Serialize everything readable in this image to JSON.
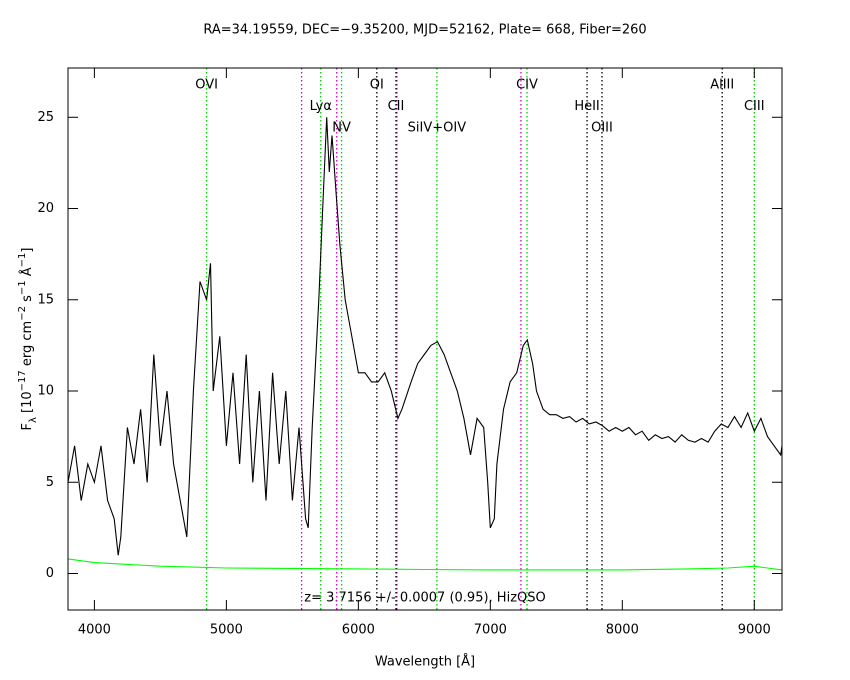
{
  "chart_data": {
    "type": "line",
    "title": "RA=34.19559, DEC=−9.35200, MJD=52162, Plate= 668, Fiber=260",
    "xlabel": "Wavelength [Å]",
    "ylabel_parts": [
      {
        "text": "F",
        "style": "base"
      },
      {
        "text": "λ",
        "style": "sub"
      },
      {
        "text": " [10",
        "style": "base"
      },
      {
        "text": "−17",
        "style": "sup"
      },
      {
        "text": " erg cm",
        "style": "base"
      },
      {
        "text": "−2",
        "style": "sup"
      },
      {
        "text": " s",
        "style": "base"
      },
      {
        "text": "−1",
        "style": "sup"
      },
      {
        "text": " Å",
        "style": "base"
      },
      {
        "text": "−1",
        "style": "sup"
      },
      {
        "text": "]",
        "style": "base"
      }
    ],
    "annotation": "z= 3.7156 +/- 0.0007 (0.95), HizQSO",
    "xlim": [
      3800,
      9210
    ],
    "ylim": [
      -2,
      27.7
    ],
    "xticks": [
      4000,
      5000,
      6000,
      7000,
      8000,
      9000
    ],
    "yticks": [
      0,
      5,
      10,
      15,
      20,
      25
    ],
    "series": [
      {
        "name": "flux",
        "color": "#000000",
        "x": [
          3800,
          3850,
          3900,
          3950,
          4000,
          4050,
          4100,
          4150,
          4180,
          4200,
          4250,
          4300,
          4350,
          4400,
          4450,
          4500,
          4550,
          4600,
          4650,
          4700,
          4750,
          4800,
          4850,
          4880,
          4900,
          4950,
          5000,
          5050,
          5100,
          5150,
          5200,
          5250,
          5300,
          5350,
          5400,
          5450,
          5500,
          5550,
          5600,
          5620,
          5650,
          5700,
          5730,
          5760,
          5780,
          5800,
          5830,
          5860,
          5900,
          5950,
          6000,
          6050,
          6100,
          6150,
          6200,
          6250,
          6300,
          6330,
          6400,
          6450,
          6500,
          6550,
          6600,
          6650,
          6700,
          6750,
          6800,
          6850,
          6900,
          6950,
          6980,
          7000,
          7030,
          7050,
          7100,
          7150,
          7200,
          7250,
          7280,
          7320,
          7350,
          7400,
          7450,
          7500,
          7550,
          7600,
          7650,
          7700,
          7750,
          7800,
          7850,
          7900,
          7950,
          8000,
          8050,
          8100,
          8150,
          8200,
          8250,
          8300,
          8350,
          8400,
          8450,
          8500,
          8550,
          8600,
          8650,
          8700,
          8750,
          8800,
          8850,
          8900,
          8950,
          9000,
          9050,
          9100,
          9150,
          9200,
          9210
        ],
        "values": [
          5,
          7,
          4,
          6,
          5,
          7,
          4,
          3,
          1,
          2,
          8,
          6,
          9,
          5,
          12,
          7,
          10,
          6,
          4,
          2,
          10,
          16,
          15,
          17,
          10,
          13,
          7,
          11,
          6,
          12,
          5,
          10,
          4,
          11,
          6,
          10,
          4,
          8,
          3,
          2.5,
          8,
          15,
          20,
          25,
          22,
          24,
          21,
          18,
          15,
          13,
          11,
          11,
          10.5,
          10.5,
          11,
          10,
          8.5,
          9,
          10.5,
          11.5,
          12,
          12.5,
          12.7,
          12,
          11,
          10,
          8.5,
          6.5,
          8.5,
          8,
          5,
          2.5,
          3,
          6,
          9,
          10.5,
          11,
          12.5,
          12.8,
          11.5,
          10,
          9,
          8.7,
          8.7,
          8.5,
          8.6,
          8.3,
          8.5,
          8.2,
          8.3,
          8.1,
          7.8,
          8,
          7.8,
          8,
          7.6,
          7.8,
          7.3,
          7.6,
          7.4,
          7.5,
          7.2,
          7.6,
          7.3,
          7.2,
          7.4,
          7.2,
          7.8,
          8.2,
          8,
          8.6,
          8,
          8.8,
          7.8,
          8.5,
          7.5,
          7,
          6.5,
          7
        ]
      },
      {
        "name": "error",
        "color": "#00ff00",
        "x": [
          3800,
          4000,
          4500,
          5000,
          5500,
          6000,
          6500,
          7000,
          7500,
          8000,
          8500,
          8800,
          9000,
          9100,
          9210
        ],
        "values": [
          0.8,
          0.6,
          0.4,
          0.3,
          0.28,
          0.25,
          0.22,
          0.2,
          0.2,
          0.2,
          0.25,
          0.3,
          0.4,
          0.3,
          0.2
        ]
      }
    ],
    "lines": [
      {
        "label": "OVI",
        "wavelength": 4850,
        "color": "#00cc00"
      },
      {
        "wavelength": 5570,
        "color": "#cc00cc"
      },
      {
        "label": "Lyα",
        "wavelength": 5715,
        "color": "#00cc00"
      },
      {
        "wavelength": 5836,
        "color": "#cc00cc"
      },
      {
        "label": "NV",
        "wavelength": 5873,
        "color": "#00cc00"
      },
      {
        "label": "OI",
        "wavelength": 6140,
        "color": "#000000"
      },
      {
        "wavelength": 6292,
        "color": "#cc00cc"
      },
      {
        "label": "CII",
        "wavelength": 6285,
        "color": "#000000"
      },
      {
        "label": "SiIV+OIV",
        "wavelength": 6595,
        "color": "#00cc00"
      },
      {
        "wavelength": 7232,
        "color": "#cc00cc"
      },
      {
        "label": "CIV",
        "wavelength": 7278,
        "color": "#00cc00"
      },
      {
        "label": "HeII",
        "wavelength": 7733,
        "color": "#000000"
      },
      {
        "label": "OIII",
        "wavelength": 7846,
        "color": "#000000"
      },
      {
        "label": "AlIII",
        "wavelength": 8757,
        "color": "#000000"
      },
      {
        "label": "CIII",
        "wavelength": 9000,
        "color": "#00cc00"
      }
    ]
  }
}
